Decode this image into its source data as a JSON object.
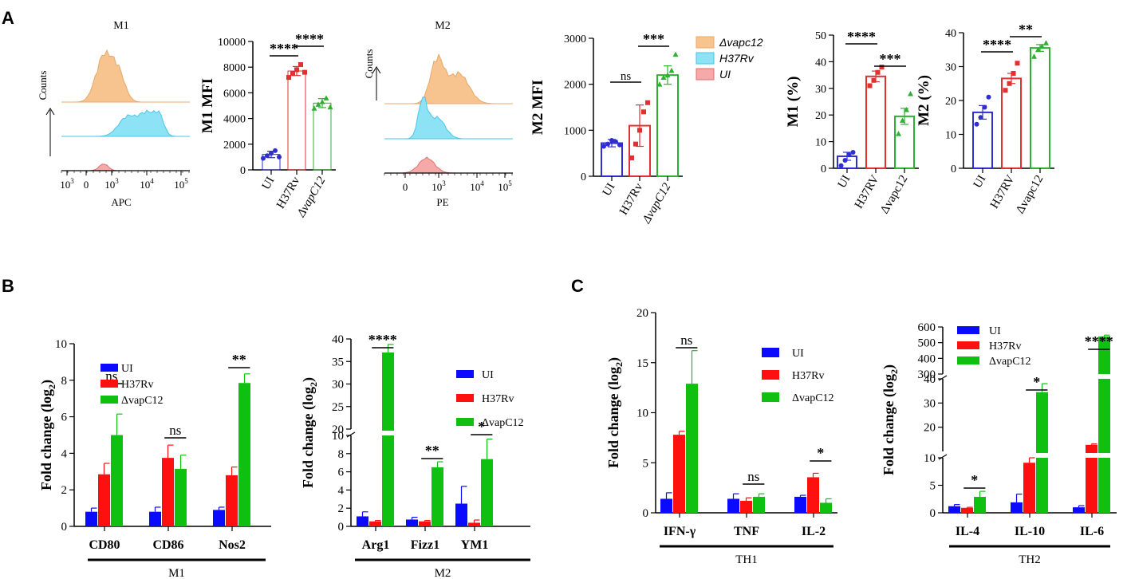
{
  "panel_labels": {
    "A": "A",
    "B": "B",
    "C": "C"
  },
  "colors": {
    "ui_bar": "#0a0aff",
    "h37_bar": "#ff1010",
    "vap_bar": "#10c010",
    "ui_open": "#2f2fd0",
    "h37_open": "#e03030",
    "vap_open": "#30b030",
    "flow_orange": "#f7c48f",
    "flow_orange_line": "#e8a868",
    "flow_cyan": "#8de3f5",
    "flow_cyan_line": "#49c6e4",
    "flow_red": "#f6a9a9",
    "flow_red_line": "#e07070"
  },
  "flow_M1": {
    "title": "M1",
    "xlabel": "APC",
    "ylabel": "Counts",
    "ticks": [
      {
        "b": "10",
        "e": "3"
      },
      {
        "b": "0",
        "e": ""
      },
      {
        "b": "10",
        "e": "3"
      },
      {
        "b": "10",
        "e": "4"
      },
      {
        "b": "10",
        "e": "5"
      }
    ]
  },
  "flow_M2": {
    "title": "M2",
    "xlabel": "PE",
    "ylabel": "Counts",
    "ticks": [
      {
        "b": "0",
        "e": ""
      },
      {
        "b": "10",
        "e": "3"
      },
      {
        "b": "10",
        "e": "4"
      },
      {
        "b": "10",
        "e": "5"
      }
    ]
  },
  "flow_legend": [
    "Δvapc12",
    "H37Rv",
    "UI"
  ],
  "legend_B": [
    "UI",
    "H37Rv",
    "ΔvapC12"
  ],
  "legend_C": [
    "UI",
    "H37Rv",
    "ΔvapC12"
  ],
  "chart_data": [
    {
      "id": "m1mfi",
      "type": "bar",
      "style": "open",
      "ylabel": "M1 MFI",
      "categories": [
        "UI",
        "H37Rv",
        "ΔvapC12"
      ],
      "values": [
        1200,
        7700,
        5200
      ],
      "errors": [
        250,
        350,
        350
      ],
      "points": [
        [
          900,
          1100,
          1300,
          1500,
          1000
        ],
        [
          7200,
          7500,
          7800,
          8200,
          7600
        ],
        [
          4800,
          5100,
          5300,
          5600,
          4900
        ]
      ],
      "ylim": [
        0,
        10000
      ],
      "yticks": [
        0,
        2000,
        4000,
        6000,
        8000,
        10000
      ],
      "sig": [
        {
          "a": 0,
          "b": 1,
          "label": "****"
        },
        {
          "a": 1,
          "b": 2,
          "label": "****"
        }
      ]
    },
    {
      "id": "m2mfi",
      "type": "bar",
      "style": "open",
      "ylabel": "M2 MFI",
      "categories": [
        "UI",
        "H37Rv",
        "ΔvapC12"
      ],
      "values": [
        720,
        1100,
        2200
      ],
      "errors": [
        80,
        450,
        200
      ],
      "points": [
        [
          650,
          700,
          780,
          750,
          680
        ],
        [
          400,
          700,
          1000,
          1400,
          1600
        ],
        [
          2000,
          2150,
          2200,
          2300,
          2650
        ]
      ],
      "ylim": [
        0,
        3000
      ],
      "yticks": [
        0,
        1000,
        2000,
        3000
      ],
      "sig": [
        {
          "a": 0,
          "b": 1,
          "label": "ns"
        },
        {
          "a": 1,
          "b": 2,
          "label": "***"
        }
      ]
    },
    {
      "id": "m1pct",
      "type": "bar",
      "style": "open",
      "ylabel": "M1 (%)",
      "categories": [
        "UI",
        "H37RV",
        "Δvapc12"
      ],
      "values": [
        4.5,
        34.5,
        19.5
      ],
      "errors": [
        1.5,
        2,
        3
      ],
      "points": [
        [
          1,
          3,
          5,
          6
        ],
        [
          31,
          33,
          36,
          38
        ],
        [
          13,
          18,
          22,
          28
        ]
      ],
      "ylim": [
        0,
        50
      ],
      "yticks": [
        0,
        10,
        20,
        30,
        40,
        50
      ],
      "sig": [
        {
          "a": 0,
          "b": 1,
          "label": "****"
        },
        {
          "a": 1,
          "b": 2,
          "label": "***"
        }
      ]
    },
    {
      "id": "m2pct",
      "type": "bar",
      "style": "open",
      "ylabel": "M2 (%)",
      "categories": [
        "UI",
        "H37RV",
        "Δvapc12"
      ],
      "values": [
        16.5,
        26.5,
        35.5
      ],
      "errors": [
        2,
        1.5,
        1
      ],
      "points": [
        [
          13,
          15,
          18,
          21
        ],
        [
          23,
          25,
          28,
          31
        ],
        [
          33,
          35,
          36,
          37
        ]
      ],
      "ylim": [
        0,
        40
      ],
      "yticks": [
        0,
        10,
        20,
        30,
        40
      ],
      "sig": [
        {
          "a": 0,
          "b": 1,
          "label": "****"
        },
        {
          "a": 1,
          "b": 2,
          "label": "**"
        }
      ]
    },
    {
      "id": "m1genes",
      "type": "bar",
      "style": "filled",
      "ylabel": "Fold change (log2)",
      "categories": [
        "CD80",
        "CD86",
        "Nos2"
      ],
      "group_label": "M1",
      "series": [
        {
          "name": "UI",
          "values": [
            0.8,
            0.8,
            0.9
          ],
          "errors": [
            0.2,
            0.25,
            0.15
          ]
        },
        {
          "name": "H37Rv",
          "values": [
            2.85,
            3.75,
            2.8
          ],
          "errors": [
            0.6,
            0.7,
            0.45
          ]
        },
        {
          "name": "ΔvapC12",
          "values": [
            5.0,
            3.15,
            7.85
          ],
          "errors": [
            1.15,
            0.75,
            0.5
          ]
        }
      ],
      "ylim": [
        0,
        10
      ],
      "yticks": [
        0,
        2,
        4,
        6,
        8,
        10
      ],
      "sig": [
        {
          "cat": 0,
          "label": "ns"
        },
        {
          "cat": 1,
          "label": "ns"
        },
        {
          "cat": 2,
          "label": "**"
        }
      ]
    },
    {
      "id": "m2genes",
      "type": "bar",
      "style": "filled",
      "ylabel": "Fold change (log2)",
      "categories": [
        "Arg1",
        "Fizz1",
        "YM1"
      ],
      "group_label": "M2",
      "series": [
        {
          "name": "UI",
          "values": [
            1.1,
            0.75,
            2.5
          ],
          "errors": [
            0.5,
            0.25,
            1.9
          ]
        },
        {
          "name": "H37Rv",
          "values": [
            0.55,
            0.55,
            0.4
          ],
          "errors": [
            0.1,
            0.1,
            0.3
          ]
        },
        {
          "name": "ΔvapC12",
          "values": [
            37,
            6.5,
            7.4
          ],
          "errors": [
            1.8,
            0.6,
            2.2
          ]
        }
      ],
      "ylim": [
        0,
        40
      ],
      "axis_break": [
        10,
        20
      ],
      "yticks": [
        0,
        2,
        4,
        6,
        8,
        10,
        20,
        25,
        30,
        35,
        40
      ],
      "sig": [
        {
          "cat": 0,
          "label": "****"
        },
        {
          "cat": 1,
          "label": "**"
        },
        {
          "cat": 2,
          "label": "*"
        }
      ]
    },
    {
      "id": "th1",
      "type": "bar",
      "style": "filled",
      "ylabel": "Fold change (log2)",
      "categories": [
        "IFN-γ",
        "TNF",
        "IL-2"
      ],
      "group_label": "TH1",
      "series": [
        {
          "name": "UI",
          "values": [
            1.4,
            1.4,
            1.6
          ],
          "errors": [
            0.6,
            0.5,
            0.15
          ]
        },
        {
          "name": "H37Rv",
          "values": [
            7.8,
            1.2,
            3.55
          ],
          "errors": [
            0.35,
            0.3,
            0.4
          ]
        },
        {
          "name": "ΔvapC12",
          "values": [
            12.9,
            1.6,
            1.0
          ],
          "errors": [
            3.3,
            0.3,
            0.4
          ]
        }
      ],
      "ylim": [
        0,
        20
      ],
      "yticks": [
        0,
        5,
        10,
        15,
        20
      ],
      "sig": [
        {
          "cat": 0,
          "label": "ns"
        },
        {
          "cat": 1,
          "label": "ns"
        },
        {
          "cat": 2,
          "label": "*"
        }
      ]
    },
    {
      "id": "th2",
      "type": "bar",
      "style": "filled",
      "ylabel": "Fold change (log2)",
      "categories": [
        "IL-4",
        "IL-10",
        "IL-6"
      ],
      "group_label": "TH2",
      "series": [
        {
          "name": "UI",
          "values": [
            1.2,
            1.9,
            1.0
          ],
          "errors": [
            0.3,
            1.5,
            0.3
          ]
        },
        {
          "name": "H37Rv",
          "values": [
            0.9,
            9.1,
            12.7
          ],
          "errors": [
            0.1,
            0.9,
            0.4
          ]
        },
        {
          "name": "ΔvapC12",
          "values": [
            2.9,
            34.5,
            540
          ],
          "errors": [
            1.0,
            3.5,
            8
          ]
        }
      ],
      "ylim": [
        0,
        600
      ],
      "yticks": [
        0,
        5,
        10,
        20,
        30,
        40,
        300,
        400,
        500,
        600
      ],
      "sig": [
        {
          "cat": 0,
          "label": "*"
        },
        {
          "cat": 1,
          "label": "*"
        },
        {
          "cat": 2,
          "label": "****"
        }
      ]
    }
  ]
}
